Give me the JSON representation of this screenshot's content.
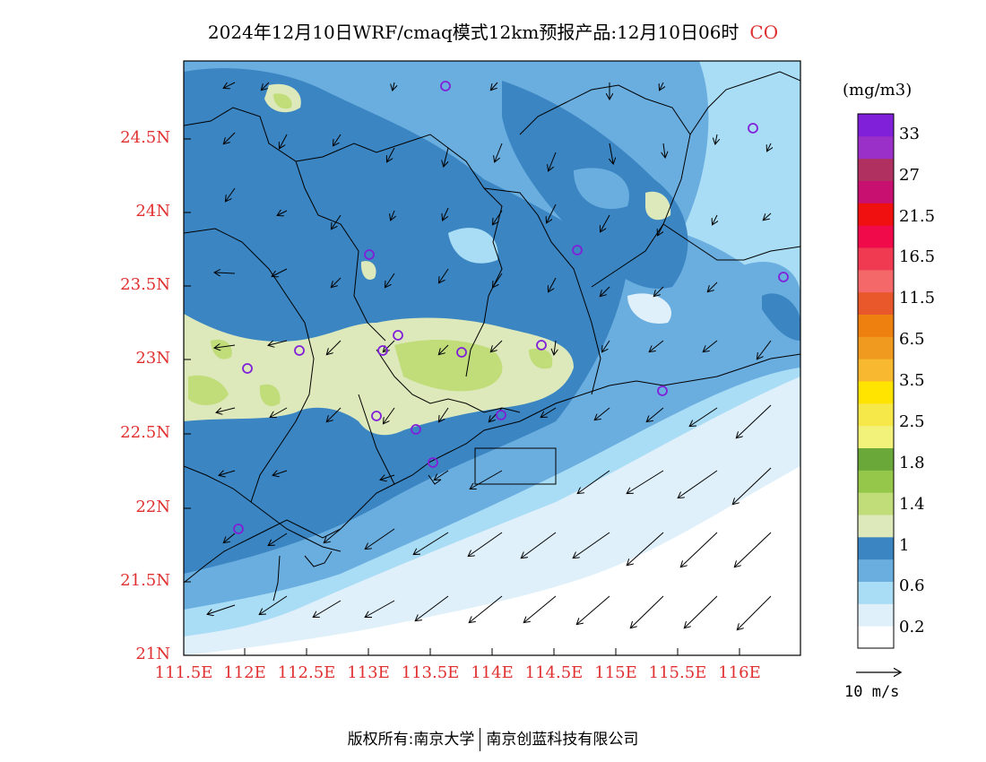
{
  "title": "2024年12月10日WRF/cmaq模式12km预报产品:12月10日06时",
  "species": "CO",
  "unit": "(mg/m3)",
  "lat_ticks": [
    "24.5N",
    "24N",
    "23.5N",
    "23N",
    "22.5N",
    "22N",
    "21.5N",
    "21N"
  ],
  "lon_ticks": [
    "111.5E",
    "112E",
    "112.5E",
    "113E",
    "113.5E",
    "114E",
    "114.5E",
    "115E",
    "115.5E",
    "116E"
  ],
  "colorbar": {
    "colors": [
      "#ffffff",
      "#dff0fb",
      "#a9dcf5",
      "#6aaee0",
      "#3a85c2",
      "#dde9bb",
      "#c0dd7a",
      "#95c84a",
      "#6aa83a",
      "#f2f27a",
      "#f7e84a",
      "#ffe400",
      "#f8b830",
      "#f09a20",
      "#ee8010",
      "#e8582a",
      "#f4686a",
      "#f03a52",
      "#f00a4a",
      "#f01010",
      "#c81070",
      "#b03060",
      "#9a30c8",
      "#8020d8"
    ],
    "labels": [
      "0.2",
      "0.6",
      "1",
      "1.4",
      "1.8",
      "2.5",
      "3.5",
      "6.5",
      "11.5",
      "16.5",
      "21.5",
      "27",
      "33"
    ]
  },
  "wind_reference": "10 m/s",
  "stations_icon": "station-circle-icon",
  "copyright": {
    "prefix": "版权所有:",
    "org1": "南京大学",
    "org2": "南京创蓝科技有限公司"
  }
}
